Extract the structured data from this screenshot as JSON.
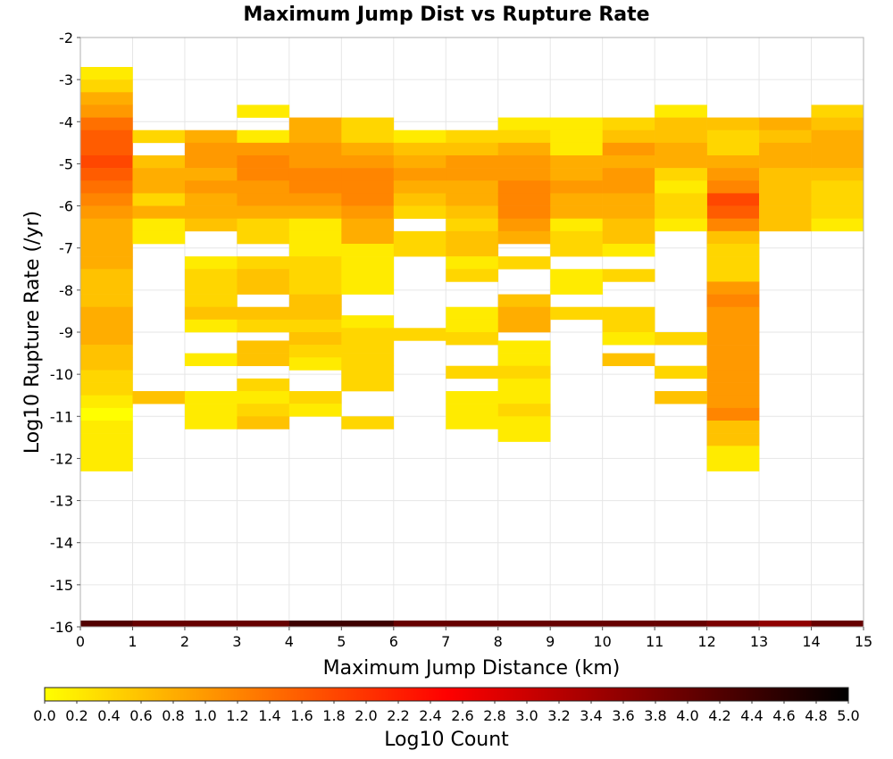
{
  "chart_data": {
    "type": "heatmap",
    "title": "Maximum Jump Dist vs Rupture Rate",
    "xlabel": "Maximum Jump Distance (km)",
    "ylabel": "Log10 Rupture Rate (/yr)",
    "xlim": [
      0,
      15
    ],
    "ylim": [
      -16,
      -2
    ],
    "x_ticks": [
      "0",
      "1",
      "2",
      "3",
      "4",
      "5",
      "6",
      "7",
      "8",
      "9",
      "10",
      "11",
      "12",
      "13",
      "14",
      "15"
    ],
    "y_ticks": [
      "-16",
      "-15",
      "-14",
      "-13",
      "-12",
      "-11",
      "-10",
      "-9",
      "-8",
      "-7",
      "-6",
      "-5",
      "-4",
      "-3",
      "-2"
    ],
    "grid": true,
    "bin_width_x": 1,
    "bin_height_y": 0.3,
    "colorbar": {
      "label": "Log10 Count",
      "min": 0.0,
      "max": 5.0,
      "ticks": [
        "0.0",
        "0.2",
        "0.4",
        "0.6",
        "0.8",
        "1.0",
        "1.2",
        "1.4",
        "1.6",
        "1.8",
        "2.0",
        "2.2",
        "2.4",
        "2.6",
        "2.8",
        "3.0",
        "3.2",
        "3.4",
        "3.6",
        "3.8",
        "4.0",
        "4.2",
        "4.4",
        "4.6",
        "4.8",
        "5.0"
      ],
      "colors": [
        "#ffff00",
        "#ffaa00",
        "#ff5500",
        "#ff0000",
        "#aa0000",
        "#550000",
        "#000000"
      ]
    },
    "columns": [
      {
        "x": 0,
        "y_top": -2.7,
        "values": [
          0.2,
          0.4,
          0.8,
          1.0,
          1.4,
          1.6,
          1.6,
          1.8,
          1.6,
          1.4,
          1.2,
          1.0,
          0.8,
          0.8,
          0.8,
          0.8,
          0.6,
          0.6,
          0.6,
          0.8,
          0.8,
          0.8,
          0.6,
          0.6,
          0.4,
          0.4,
          0.2,
          0.0,
          0.2,
          0.2,
          0.2,
          0.2
        ]
      },
      {
        "x": 12,
        "y_top": -3.9,
        "values": [
          0.6,
          0.4,
          0.4,
          0.8,
          1.0,
          1.2,
          1.8,
          1.6,
          1.2,
          0.6,
          0.4,
          0.4,
          0.4,
          1.0,
          1.2,
          1.0,
          1.0,
          1.0,
          1.0,
          1.0,
          1.0,
          1.0,
          1.0,
          1.2,
          0.6,
          0.6,
          0.2,
          0.2
        ]
      },
      {
        "x": 13,
        "y_top": -3.9,
        "values": [
          0.8,
          0.6,
          0.8,
          0.8,
          0.6,
          0.6,
          0.6,
          0.6,
          0.6
        ]
      },
      {
        "x": 14,
        "y_top": -3.6,
        "values": [
          0.4,
          0.6,
          0.8,
          0.8,
          0.8,
          0.6,
          0.4,
          0.4,
          0.4,
          0.2
        ]
      }
    ],
    "cells": [
      [
        1,
        -4.2,
        0.4
      ],
      [
        1,
        -4.8,
        0.6
      ],
      [
        1,
        -5.1,
        0.8
      ],
      [
        1,
        -5.4,
        0.8
      ],
      [
        1,
        -5.7,
        0.4
      ],
      [
        1,
        -6.0,
        0.8
      ],
      [
        1,
        -6.3,
        0.2
      ],
      [
        1,
        -6.6,
        0.2
      ],
      [
        1,
        -10.4,
        0.6
      ],
      [
        2,
        -4.2,
        0.8
      ],
      [
        2,
        -4.5,
        1.0
      ],
      [
        2,
        -4.8,
        1.0
      ],
      [
        2,
        -5.1,
        0.8
      ],
      [
        2,
        -5.4,
        1.0
      ],
      [
        2,
        -5.7,
        0.8
      ],
      [
        2,
        -6.0,
        0.8
      ],
      [
        2,
        -6.3,
        0.6
      ],
      [
        2,
        -7.2,
        0.2
      ],
      [
        2,
        -7.5,
        0.4
      ],
      [
        2,
        -7.8,
        0.4
      ],
      [
        2,
        -8.1,
        0.4
      ],
      [
        2,
        -8.4,
        0.6
      ],
      [
        2,
        -8.7,
        0.2
      ],
      [
        2,
        -9.5,
        0.2
      ],
      [
        2,
        -10.4,
        0.2
      ],
      [
        2,
        -10.7,
        0.2
      ],
      [
        2,
        -11.0,
        0.2
      ],
      [
        3,
        -3.6,
        0.2
      ],
      [
        3,
        -4.2,
        0.2
      ],
      [
        3,
        -4.5,
        1.0
      ],
      [
        3,
        -4.8,
        1.2
      ],
      [
        3,
        -5.1,
        1.2
      ],
      [
        3,
        -5.4,
        1.0
      ],
      [
        3,
        -5.7,
        1.0
      ],
      [
        3,
        -6.0,
        0.8
      ],
      [
        3,
        -6.3,
        0.4
      ],
      [
        3,
        -6.6,
        0.4
      ],
      [
        3,
        -7.2,
        0.4
      ],
      [
        3,
        -7.5,
        0.6
      ],
      [
        3,
        -7.8,
        0.6
      ],
      [
        3,
        -8.4,
        0.6
      ],
      [
        3,
        -8.7,
        0.4
      ],
      [
        3,
        -9.2,
        0.6
      ],
      [
        3,
        -9.5,
        0.6
      ],
      [
        3,
        -10.1,
        0.4
      ],
      [
        3,
        -10.4,
        0.2
      ],
      [
        3,
        -10.7,
        0.4
      ],
      [
        3,
        -11.0,
        0.6
      ],
      [
        4,
        -3.9,
        0.8
      ],
      [
        4,
        -4.2,
        0.8
      ],
      [
        4,
        -4.5,
        1.0
      ],
      [
        4,
        -4.8,
        1.0
      ],
      [
        4,
        -5.1,
        1.2
      ],
      [
        4,
        -5.4,
        1.2
      ],
      [
        4,
        -5.7,
        1.0
      ],
      [
        4,
        -6.0,
        0.8
      ],
      [
        4,
        -6.3,
        0.2
      ],
      [
        4,
        -6.6,
        0.2
      ],
      [
        4,
        -6.9,
        0.2
      ],
      [
        4,
        -7.2,
        0.4
      ],
      [
        4,
        -7.5,
        0.4
      ],
      [
        4,
        -7.8,
        0.4
      ],
      [
        4,
        -8.1,
        0.6
      ],
      [
        4,
        -8.4,
        0.6
      ],
      [
        4,
        -8.7,
        0.4
      ],
      [
        4,
        -9.0,
        0.6
      ],
      [
        4,
        -9.3,
        0.4
      ],
      [
        4,
        -9.6,
        0.2
      ],
      [
        4,
        -10.4,
        0.4
      ],
      [
        4,
        -10.7,
        0.2
      ],
      [
        5,
        -3.9,
        0.4
      ],
      [
        5,
        -4.2,
        0.4
      ],
      [
        5,
        -4.5,
        0.8
      ],
      [
        5,
        -4.8,
        1.0
      ],
      [
        5,
        -5.1,
        1.2
      ],
      [
        5,
        -5.4,
        1.2
      ],
      [
        5,
        -5.7,
        1.2
      ],
      [
        5,
        -6.0,
        1.0
      ],
      [
        5,
        -6.3,
        0.8
      ],
      [
        5,
        -6.6,
        0.8
      ],
      [
        5,
        -6.9,
        0.2
      ],
      [
        5,
        -7.2,
        0.2
      ],
      [
        5,
        -7.5,
        0.2
      ],
      [
        5,
        -7.8,
        0.2
      ],
      [
        5,
        -8.6,
        0.2
      ],
      [
        5,
        -8.9,
        0.4
      ],
      [
        5,
        -9.2,
        0.4
      ],
      [
        5,
        -9.5,
        0.4
      ],
      [
        5,
        -9.8,
        0.4
      ],
      [
        5,
        -10.1,
        0.4
      ],
      [
        5,
        -11.0,
        0.4
      ],
      [
        6,
        -4.2,
        0.2
      ],
      [
        6,
        -4.5,
        0.6
      ],
      [
        6,
        -4.8,
        0.8
      ],
      [
        6,
        -5.1,
        1.0
      ],
      [
        6,
        -5.4,
        0.8
      ],
      [
        6,
        -5.7,
        0.6
      ],
      [
        6,
        -6.0,
        0.4
      ],
      [
        6,
        -6.6,
        0.4
      ],
      [
        6,
        -6.9,
        0.4
      ],
      [
        6,
        -8.9,
        0.4
      ],
      [
        7,
        -4.2,
        0.4
      ],
      [
        7,
        -4.5,
        0.6
      ],
      [
        7,
        -4.8,
        1.0
      ],
      [
        7,
        -5.1,
        1.0
      ],
      [
        7,
        -5.4,
        0.8
      ],
      [
        7,
        -5.7,
        0.8
      ],
      [
        7,
        -6.0,
        0.6
      ],
      [
        7,
        -6.3,
        0.4
      ],
      [
        7,
        -6.6,
        0.6
      ],
      [
        7,
        -6.9,
        0.6
      ],
      [
        7,
        -7.2,
        0.2
      ],
      [
        7,
        -7.5,
        0.4
      ],
      [
        7,
        -8.4,
        0.2
      ],
      [
        7,
        -8.7,
        0.2
      ],
      [
        7,
        -9.0,
        0.4
      ],
      [
        7,
        -9.8,
        0.4
      ],
      [
        7,
        -10.4,
        0.2
      ],
      [
        7,
        -10.7,
        0.2
      ],
      [
        7,
        -11.0,
        0.2
      ],
      [
        8,
        -3.9,
        0.2
      ],
      [
        8,
        -4.2,
        0.4
      ],
      [
        8,
        -4.5,
        0.8
      ],
      [
        8,
        -4.8,
        1.0
      ],
      [
        8,
        -5.1,
        1.0
      ],
      [
        8,
        -5.4,
        1.2
      ],
      [
        8,
        -5.7,
        1.2
      ],
      [
        8,
        -6.0,
        1.2
      ],
      [
        8,
        -6.3,
        1.0
      ],
      [
        8,
        -6.6,
        0.8
      ],
      [
        8,
        -7.2,
        0.4
      ],
      [
        8,
        -8.1,
        0.6
      ],
      [
        8,
        -8.4,
        0.8
      ],
      [
        8,
        -8.7,
        0.8
      ],
      [
        8,
        -9.2,
        0.2
      ],
      [
        8,
        -9.5,
        0.2
      ],
      [
        8,
        -9.8,
        0.4
      ],
      [
        8,
        -10.1,
        0.2
      ],
      [
        8,
        -10.4,
        0.2
      ],
      [
        8,
        -10.7,
        0.4
      ],
      [
        8,
        -11.0,
        0.2
      ],
      [
        8,
        -11.3,
        0.2
      ],
      [
        9,
        -3.9,
        0.2
      ],
      [
        9,
        -4.2,
        0.2
      ],
      [
        9,
        -4.5,
        0.2
      ],
      [
        9,
        -4.8,
        0.8
      ],
      [
        9,
        -5.1,
        0.8
      ],
      [
        9,
        -5.4,
        1.0
      ],
      [
        9,
        -5.7,
        0.8
      ],
      [
        9,
        -6.0,
        0.8
      ],
      [
        9,
        -6.3,
        0.2
      ],
      [
        9,
        -6.6,
        0.4
      ],
      [
        9,
        -6.9,
        0.4
      ],
      [
        9,
        -7.5,
        0.2
      ],
      [
        9,
        -7.8,
        0.2
      ],
      [
        9,
        -8.4,
        0.4
      ],
      [
        10,
        -3.9,
        0.4
      ],
      [
        10,
        -4.2,
        0.6
      ],
      [
        10,
        -4.5,
        1.0
      ],
      [
        10,
        -4.8,
        0.8
      ],
      [
        10,
        -5.1,
        1.0
      ],
      [
        10,
        -5.4,
        1.0
      ],
      [
        10,
        -5.7,
        0.8
      ],
      [
        10,
        -6.0,
        0.8
      ],
      [
        10,
        -6.3,
        0.6
      ],
      [
        10,
        -6.6,
        0.6
      ],
      [
        10,
        -6.9,
        0.2
      ],
      [
        10,
        -7.5,
        0.4
      ],
      [
        10,
        -8.4,
        0.4
      ],
      [
        10,
        -8.7,
        0.4
      ],
      [
        10,
        -9.0,
        0.2
      ],
      [
        10,
        -9.5,
        0.6
      ],
      [
        11,
        -3.6,
        0.2
      ],
      [
        11,
        -3.9,
        0.6
      ],
      [
        11,
        -4.2,
        0.6
      ],
      [
        11,
        -4.5,
        0.8
      ],
      [
        11,
        -4.8,
        0.8
      ],
      [
        11,
        -5.1,
        0.4
      ],
      [
        11,
        -5.4,
        0.2
      ],
      [
        11,
        -5.7,
        0.4
      ],
      [
        11,
        -6.0,
        0.4
      ],
      [
        11,
        -6.3,
        0.2
      ],
      [
        11,
        -9.0,
        0.4
      ],
      [
        11,
        -9.8,
        0.4
      ],
      [
        11,
        -10.4,
        0.6
      ]
    ],
    "bottom_row": {
      "y_top": -15.85,
      "y_bottom": -16.0,
      "values": [
        4.2,
        4.0,
        4.0,
        4.0,
        4.4,
        4.4,
        4.0,
        4.0,
        4.0,
        4.0,
        4.0,
        4.0,
        3.8,
        3.6,
        4.0
      ]
    }
  }
}
